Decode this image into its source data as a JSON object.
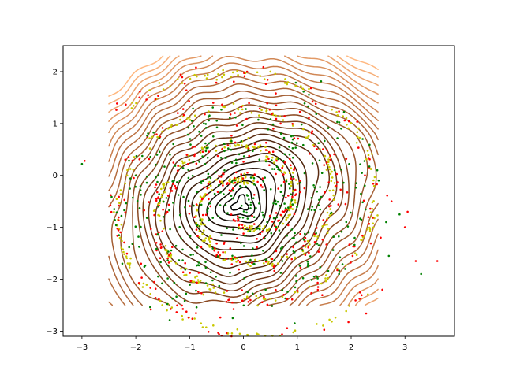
{
  "chart_data": {
    "type": "scatter",
    "title": "",
    "xlabel": "",
    "ylabel": "",
    "xlim": [
      -3.35,
      3.92
    ],
    "ylim": [
      -3.1,
      2.5
    ],
    "x_ticks": [
      -3,
      -2,
      -1,
      0,
      1,
      2,
      3
    ],
    "y_ticks": [
      -3,
      -2,
      -1,
      0,
      1,
      2
    ],
    "x_tick_labels": [
      "−3",
      "−2",
      "−1",
      "0",
      "1",
      "2",
      "3"
    ],
    "y_tick_labels": [
      "−3",
      "−2",
      "−1",
      "0",
      "1",
      "2"
    ],
    "grid": false,
    "legend": "none",
    "contours": {
      "center": [
        -0.05,
        -0.55
      ],
      "grid_extent": {
        "x": [
          -2.5,
          2.5
        ],
        "y": [
          -2.5,
          2.3
        ]
      },
      "levels": 27,
      "colormap": [
        "#000000",
        "#3c1a08",
        "#8b4a23",
        "#c27848",
        "#ffb880"
      ]
    },
    "series": [
      {
        "color": "#ff0000",
        "marker": "point",
        "distribution": "two-arm spiral"
      },
      {
        "color": "#c8c800",
        "marker": "point",
        "distribution": "two-arm spiral"
      },
      {
        "color": "#008000",
        "marker": "point",
        "distribution": "scattered around center"
      }
    ]
  }
}
